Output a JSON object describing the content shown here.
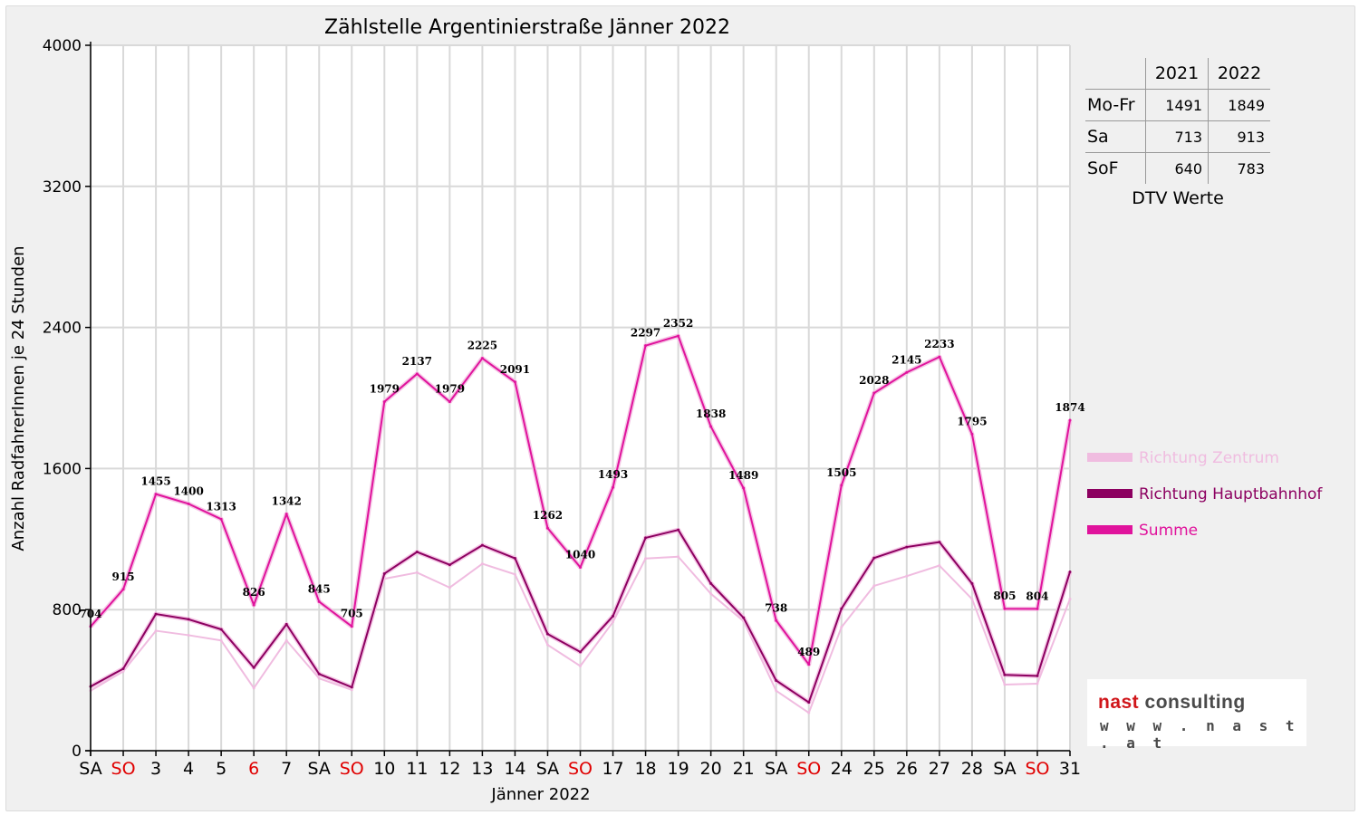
{
  "chart_data": {
    "type": "line",
    "title": "Zählstelle Argentinierstraße Jänner 2022",
    "xlabel": "Jänner 2022",
    "ylabel": "Anzahl RadfahrerInnen je 24 Stunden",
    "ylim": [
      0,
      4000
    ],
    "yticks": [
      "0",
      "800",
      "1600",
      "2400",
      "3200",
      "4000"
    ],
    "grid": true,
    "legend_position": "right",
    "categories": [
      "SA",
      "SO",
      "3",
      "4",
      "5",
      "6",
      "7",
      "SA",
      "SO",
      "10",
      "11",
      "12",
      "13",
      "14",
      "SA",
      "SO",
      "17",
      "18",
      "19",
      "20",
      "21",
      "SA",
      "SO",
      "24",
      "25",
      "26",
      "27",
      "28",
      "SA",
      "SO",
      "31"
    ],
    "category_colors": [
      "#000000",
      "#e00000",
      "#000000",
      "#000000",
      "#000000",
      "#e00000",
      "#000000",
      "#000000",
      "#e00000",
      "#000000",
      "#000000",
      "#000000",
      "#000000",
      "#000000",
      "#000000",
      "#e00000",
      "#000000",
      "#000000",
      "#000000",
      "#000000",
      "#000000",
      "#000000",
      "#e00000",
      "#000000",
      "#000000",
      "#000000",
      "#000000",
      "#000000",
      "#000000",
      "#e00000",
      "#000000"
    ],
    "series": [
      {
        "name": "Richtung Zentrum",
        "color": "#f0bce0",
        "values": [
          340,
          450,
          680,
          655,
          625,
          355,
          625,
          410,
          345,
          975,
          1010,
          925,
          1060,
          1000,
          600,
          480,
          730,
          1090,
          1100,
          890,
          735,
          340,
          215,
          700,
          935,
          990,
          1050,
          860,
          375,
          380,
          860
        ]
      },
      {
        "name": "Richtung Hauptbahnhof",
        "color": "#8c0060",
        "values": [
          364,
          465,
          775,
          745,
          688,
          471,
          717,
          435,
          360,
          1004,
          1127,
          1054,
          1165,
          1091,
          662,
          560,
          763,
          1207,
          1252,
          948,
          754,
          398,
          274,
          805,
          1093,
          1155,
          1183,
          948,
          430,
          424,
          1014
        ]
      },
      {
        "name": "Summe",
        "color": "#e0139c",
        "values": [
          704,
          915,
          1455,
          1400,
          1313,
          826,
          1342,
          845,
          705,
          1979,
          2137,
          1979,
          2225,
          2091,
          1262,
          1040,
          1493,
          2297,
          2352,
          1838,
          1489,
          738,
          489,
          1505,
          2028,
          2145,
          2233,
          1795,
          805,
          804,
          1874
        ]
      }
    ],
    "data_labels": [
      "704",
      "915",
      "1455",
      "1400",
      "1313",
      "826",
      "1342",
      "845",
      "705",
      "1979",
      "2137",
      "1979",
      "2225",
      "2091",
      "1262",
      "1040",
      "1493",
      "2297",
      "2352",
      "1838",
      "1489",
      "738",
      "489",
      "1505",
      "2028",
      "2145",
      "2233",
      "1795",
      "805",
      "804",
      "1874"
    ]
  },
  "dtv_table": {
    "headers": [
      "",
      "2021",
      "2022"
    ],
    "rows": [
      {
        "label": "Mo-Fr",
        "v2021": "1491",
        "v2022": "1849"
      },
      {
        "label": "Sa",
        "v2021": "713",
        "v2022": "913"
      },
      {
        "label": "SoF",
        "v2021": "640",
        "v2022": "783"
      }
    ],
    "caption": "DTV Werte"
  },
  "logo": {
    "word1": "nast",
    "word2": "consulting",
    "url": "w w w . n a s t . a t"
  }
}
